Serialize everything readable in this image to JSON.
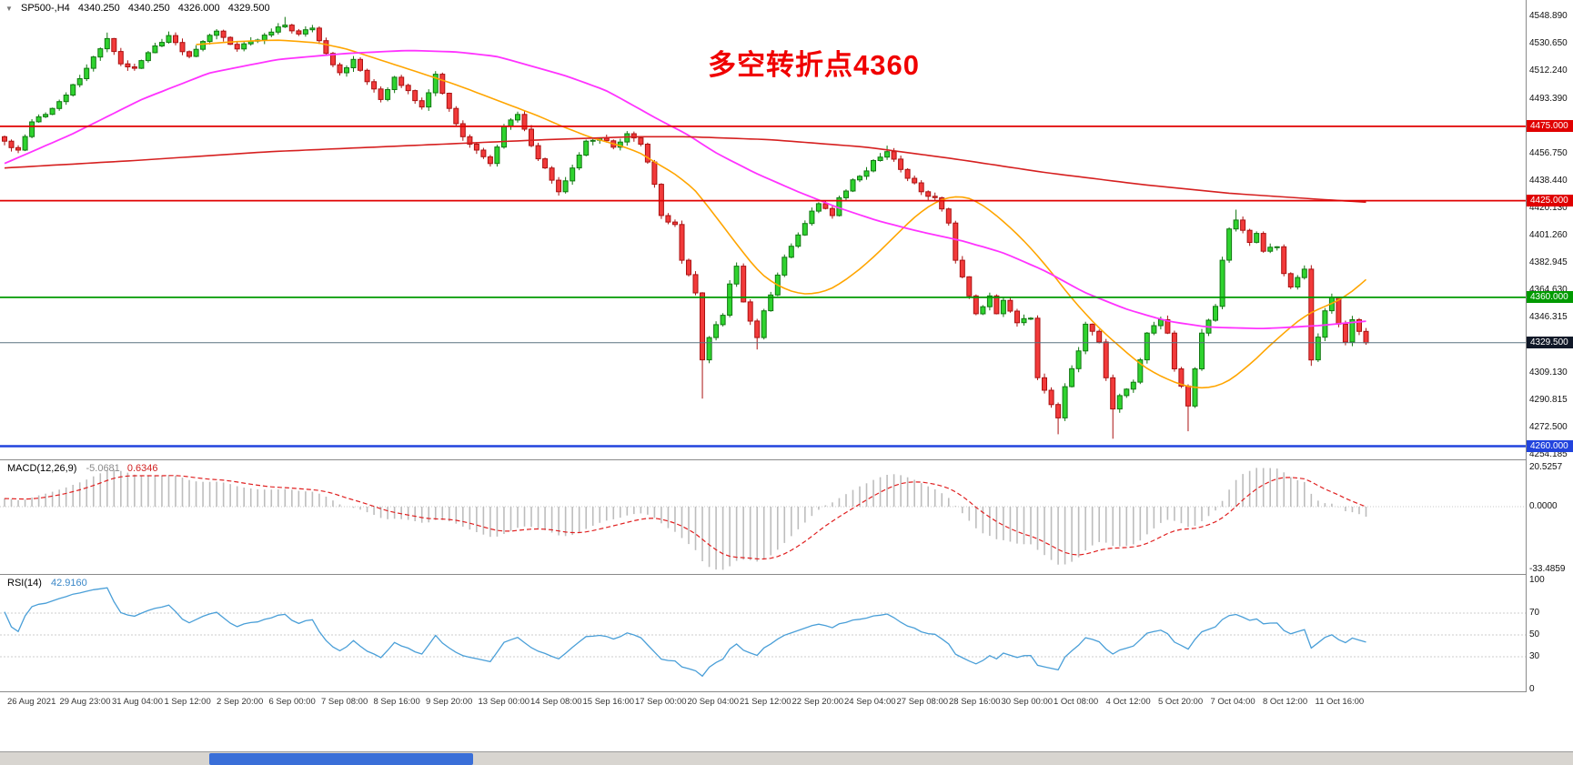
{
  "header": {
    "marker": "▼",
    "symbol": "SP500-,H4",
    "open": "4340.250",
    "high": "4340.250",
    "low": "4326.000",
    "close": "4329.500"
  },
  "chart_data": {
    "type": "candlestick",
    "symbol": "SP500-",
    "timeframe": "H4",
    "annotation": {
      "text": "多空转折点4360",
      "color": "#f00000"
    },
    "last_ohlc": {
      "open": 4340.25,
      "high": 4340.25,
      "low": 4326.0,
      "close": 4329.5
    },
    "colors": {
      "up": "#2fd32f",
      "up_stroke": "#117711",
      "down": "#f23a3a",
      "down_stroke": "#aa1111",
      "ma_fast": "#ffa500",
      "ma_mid": "#ff33ff",
      "ma_slow": "#d62020",
      "macd_hist": "#bdbdbd",
      "macd_signal": "#e02020",
      "rsi": "#4a9fd8"
    },
    "y_ticks": [
      "4548.890",
      "4530.650",
      "4512.240",
      "4493.390",
      "4456.750",
      "4438.440",
      "4420.130",
      "4401.260",
      "4382.945",
      "4364.630",
      "4346.315",
      "4309.130",
      "4290.815",
      "4272.500",
      "4254.185"
    ],
    "x_labels": [
      "26 Aug 2021",
      "29 Aug 23:00",
      "31 Aug 04:00",
      "1 Sep 12:00",
      "2 Sep 20:00",
      "6 Sep 00:00",
      "7 Sep 08:00",
      "8 Sep 16:00",
      "9 Sep 20:00",
      "13 Sep 00:00",
      "14 Sep 08:00",
      "15 Sep 16:00",
      "17 Sep 00:00",
      "20 Sep 04:00",
      "21 Sep 12:00",
      "22 Sep 20:00",
      "24 Sep 04:00",
      "27 Sep 08:00",
      "28 Sep 16:00",
      "30 Sep 00:00",
      "1 Oct 08:00",
      "4 Oct 12:00",
      "5 Oct 20:00",
      "7 Oct 04:00",
      "8 Oct 12:00",
      "11 Oct 16:00"
    ],
    "hlines": [
      {
        "price": 4475.0,
        "label": "4475.000",
        "color": "#e00000",
        "width": 1.8
      },
      {
        "price": 4425.0,
        "label": "4425.000",
        "color": "#e00000",
        "width": 1.8
      },
      {
        "price": 4360.0,
        "label": "4360.000",
        "color": "#009a00",
        "width": 1.8
      },
      {
        "price": 4260.0,
        "label": "4260.000",
        "color": "#2244dd",
        "width": 2.4
      }
    ],
    "current_price": {
      "price": 4329.5,
      "label": "4329.500",
      "badge": "#101828",
      "line": "#5a7280",
      "width": 1
    },
    "price_waypoints": [
      [
        0,
        4465
      ],
      [
        2,
        4459
      ],
      [
        4,
        4478
      ],
      [
        7,
        4487
      ],
      [
        9,
        4496
      ],
      [
        12,
        4514
      ],
      [
        15,
        4534
      ],
      [
        17,
        4517
      ],
      [
        19,
        4514
      ],
      [
        22,
        4529
      ],
      [
        24,
        4536
      ],
      [
        27,
        4522
      ],
      [
        29,
        4532
      ],
      [
        31,
        4539
      ],
      [
        34,
        4527
      ],
      [
        37,
        4533
      ],
      [
        41,
        4543
      ],
      [
        43,
        4537
      ],
      [
        45,
        4541
      ],
      [
        47,
        4524
      ],
      [
        49,
        4511
      ],
      [
        51,
        4520
      ],
      [
        53,
        4505
      ],
      [
        55,
        4493
      ],
      [
        57,
        4508
      ],
      [
        59,
        4499
      ],
      [
        61,
        4488
      ],
      [
        63,
        4510
      ],
      [
        65,
        4487
      ],
      [
        67,
        4468
      ],
      [
        69,
        4459
      ],
      [
        71,
        4450
      ],
      [
        73,
        4475
      ],
      [
        75,
        4483
      ],
      [
        77,
        4462
      ],
      [
        79,
        4447
      ],
      [
        81,
        4431
      ],
      [
        83,
        4447
      ],
      [
        85,
        4465
      ],
      [
        87,
        4467
      ],
      [
        89,
        4461
      ],
      [
        91,
        4470
      ],
      [
        93,
        4463
      ],
      [
        94,
        4451
      ],
      [
        95,
        4436
      ],
      [
        96,
        4415
      ],
      [
        98,
        4409
      ],
      [
        99,
        4385
      ],
      [
        101,
        4363
      ],
      [
        102,
        4318
      ],
      [
        103,
        4333
      ],
      [
        105,
        4348
      ],
      [
        106,
        4369
      ],
      [
        107,
        4381
      ],
      [
        108,
        4357
      ],
      [
        110,
        4333
      ],
      [
        111,
        4351
      ],
      [
        113,
        4375
      ],
      [
        114,
        4387
      ],
      [
        116,
        4402
      ],
      [
        118,
        4418
      ],
      [
        119,
        4423
      ],
      [
        121,
        4415
      ],
      [
        122,
        4427
      ],
      [
        124,
        4439
      ],
      [
        126,
        4445
      ],
      [
        127,
        4452
      ],
      [
        129,
        4458
      ],
      [
        131,
        4446
      ],
      [
        133,
        4437
      ],
      [
        134,
        4431
      ],
      [
        136,
        4427
      ],
      [
        138,
        4410
      ],
      [
        139,
        4385
      ],
      [
        141,
        4361
      ],
      [
        142,
        4349
      ],
      [
        144,
        4361
      ],
      [
        145,
        4349
      ],
      [
        146,
        4358
      ],
      [
        148,
        4343
      ],
      [
        150,
        4346
      ],
      [
        151,
        4306
      ],
      [
        153,
        4288
      ],
      [
        154,
        4279
      ],
      [
        155,
        4300
      ],
      [
        157,
        4324
      ],
      [
        158,
        4342
      ],
      [
        160,
        4330
      ],
      [
        161,
        4306
      ],
      [
        162,
        4285
      ],
      [
        163,
        4294
      ],
      [
        165,
        4303
      ],
      [
        166,
        4318
      ],
      [
        167,
        4336
      ],
      [
        169,
        4345
      ],
      [
        170,
        4336
      ],
      [
        171,
        4312
      ],
      [
        173,
        4287
      ],
      [
        174,
        4312
      ],
      [
        175,
        4336
      ],
      [
        177,
        4354
      ],
      [
        178,
        4385
      ],
      [
        179,
        4406
      ],
      [
        180,
        4412
      ],
      [
        182,
        4397
      ],
      [
        183,
        4403
      ],
      [
        184,
        4391
      ],
      [
        186,
        4394
      ],
      [
        187,
        4376
      ],
      [
        188,
        4367
      ],
      [
        190,
        4379
      ],
      [
        191,
        4318
      ],
      [
        193,
        4351
      ],
      [
        194,
        4360
      ],
      [
        195,
        4342
      ],
      [
        196,
        4330
      ],
      [
        197,
        4345
      ],
      [
        199,
        4329.5
      ]
    ],
    "wick_lows": {
      "102": 4292,
      "110": 4325,
      "154": 4268,
      "162": 4265,
      "173": 4270,
      "191": 4314
    },
    "wick_highs": {
      "15": 4538,
      "41": 4548.5,
      "129": 4462,
      "180": 4419
    },
    "overlays": [
      {
        "name": "ma-fast",
        "color_key": "ma_fast",
        "points": [
          [
            28,
            4530
          ],
          [
            34,
            4532
          ],
          [
            40,
            4533
          ],
          [
            46,
            4531
          ],
          [
            50,
            4527
          ],
          [
            54,
            4521
          ],
          [
            58,
            4515
          ],
          [
            62,
            4509
          ],
          [
            66,
            4503
          ],
          [
            70,
            4496
          ],
          [
            74,
            4489
          ],
          [
            78,
            4482
          ],
          [
            82,
            4474
          ],
          [
            86,
            4467
          ],
          [
            90,
            4462
          ],
          [
            93,
            4457
          ],
          [
            95,
            4451
          ],
          [
            98,
            4443
          ],
          [
            101,
            4432
          ],
          [
            103,
            4420
          ],
          [
            105,
            4408
          ],
          [
            107,
            4396
          ],
          [
            109,
            4384
          ],
          [
            111,
            4374
          ],
          [
            113,
            4368
          ],
          [
            115,
            4364
          ],
          [
            117,
            4362
          ],
          [
            119,
            4363
          ],
          [
            121,
            4366
          ],
          [
            123,
            4372
          ],
          [
            125,
            4379
          ],
          [
            127,
            4387
          ],
          [
            129,
            4396
          ],
          [
            131,
            4405
          ],
          [
            133,
            4414
          ],
          [
            135,
            4421
          ],
          [
            137,
            4426
          ],
          [
            139,
            4428
          ],
          [
            141,
            4427
          ],
          [
            143,
            4422
          ],
          [
            145,
            4415
          ],
          [
            147,
            4407
          ],
          [
            149,
            4398
          ],
          [
            151,
            4388
          ],
          [
            153,
            4377
          ],
          [
            155,
            4365
          ],
          [
            157,
            4354
          ],
          [
            159,
            4344
          ],
          [
            161,
            4335
          ],
          [
            163,
            4327
          ],
          [
            165,
            4319
          ],
          [
            167,
            4312
          ],
          [
            169,
            4307
          ],
          [
            171,
            4303
          ],
          [
            173,
            4300
          ],
          [
            175,
            4299
          ],
          [
            177,
            4300
          ],
          [
            179,
            4304
          ],
          [
            181,
            4311
          ],
          [
            183,
            4319
          ],
          [
            185,
            4328
          ],
          [
            187,
            4336
          ],
          [
            189,
            4344
          ],
          [
            191,
            4350
          ],
          [
            193,
            4354
          ],
          [
            195,
            4358
          ],
          [
            197,
            4364
          ],
          [
            199,
            4372
          ]
        ]
      },
      {
        "name": "ma-mid",
        "color_key": "ma_mid",
        "points": [
          [
            0,
            4450
          ],
          [
            10,
            4470
          ],
          [
            20,
            4493
          ],
          [
            30,
            4511
          ],
          [
            40,
            4520
          ],
          [
            50,
            4524
          ],
          [
            59,
            4526
          ],
          [
            66,
            4525
          ],
          [
            72,
            4522
          ],
          [
            82,
            4509
          ],
          [
            88,
            4499
          ],
          [
            95,
            4481
          ],
          [
            100,
            4469
          ],
          [
            104,
            4457
          ],
          [
            110,
            4443
          ],
          [
            116,
            4431
          ],
          [
            122,
            4420
          ],
          [
            128,
            4411
          ],
          [
            134,
            4404
          ],
          [
            140,
            4398
          ],
          [
            146,
            4390
          ],
          [
            152,
            4378
          ],
          [
            158,
            4363
          ],
          [
            164,
            4352
          ],
          [
            170,
            4344
          ],
          [
            176,
            4340
          ],
          [
            184,
            4339
          ],
          [
            192,
            4341
          ],
          [
            199,
            4344
          ]
        ]
      },
      {
        "name": "ma-slow",
        "color_key": "ma_slow",
        "points": [
          [
            0,
            4447
          ],
          [
            19,
            4452
          ],
          [
            39,
            4458
          ],
          [
            59,
            4462
          ],
          [
            79,
            4466
          ],
          [
            92,
            4468
          ],
          [
            100,
            4468
          ],
          [
            112,
            4466
          ],
          [
            126,
            4461
          ],
          [
            139,
            4453
          ],
          [
            152,
            4444
          ],
          [
            166,
            4436
          ],
          [
            179,
            4430
          ],
          [
            192,
            4426
          ],
          [
            199,
            4424
          ]
        ]
      }
    ],
    "indicators": [
      {
        "name": "MACD",
        "label": "MACD(12,26,9)",
        "values": [
          "-5.0681",
          "0.6346"
        ],
        "params": [
          12,
          26,
          9
        ],
        "y_ticks": [
          {
            "label": "20.5257",
            "value": 20.5257
          },
          {
            "label": "0.0000",
            "value": 0
          },
          {
            "label": "-33.4859",
            "value": -33.4859
          }
        ],
        "range": [
          -33.4859,
          20.5257
        ]
      },
      {
        "name": "RSI",
        "label": "RSI(14)",
        "value": "42.9160",
        "period": 14,
        "levels": [
          30,
          50,
          70
        ],
        "y_ticks": [
          {
            "label": "100",
            "value": 100
          },
          {
            "label": "70",
            "value": 70
          },
          {
            "label": "50",
            "value": 50
          },
          {
            "label": "30",
            "value": 30
          },
          {
            "label": "0",
            "value": 0
          }
        ]
      }
    ]
  }
}
